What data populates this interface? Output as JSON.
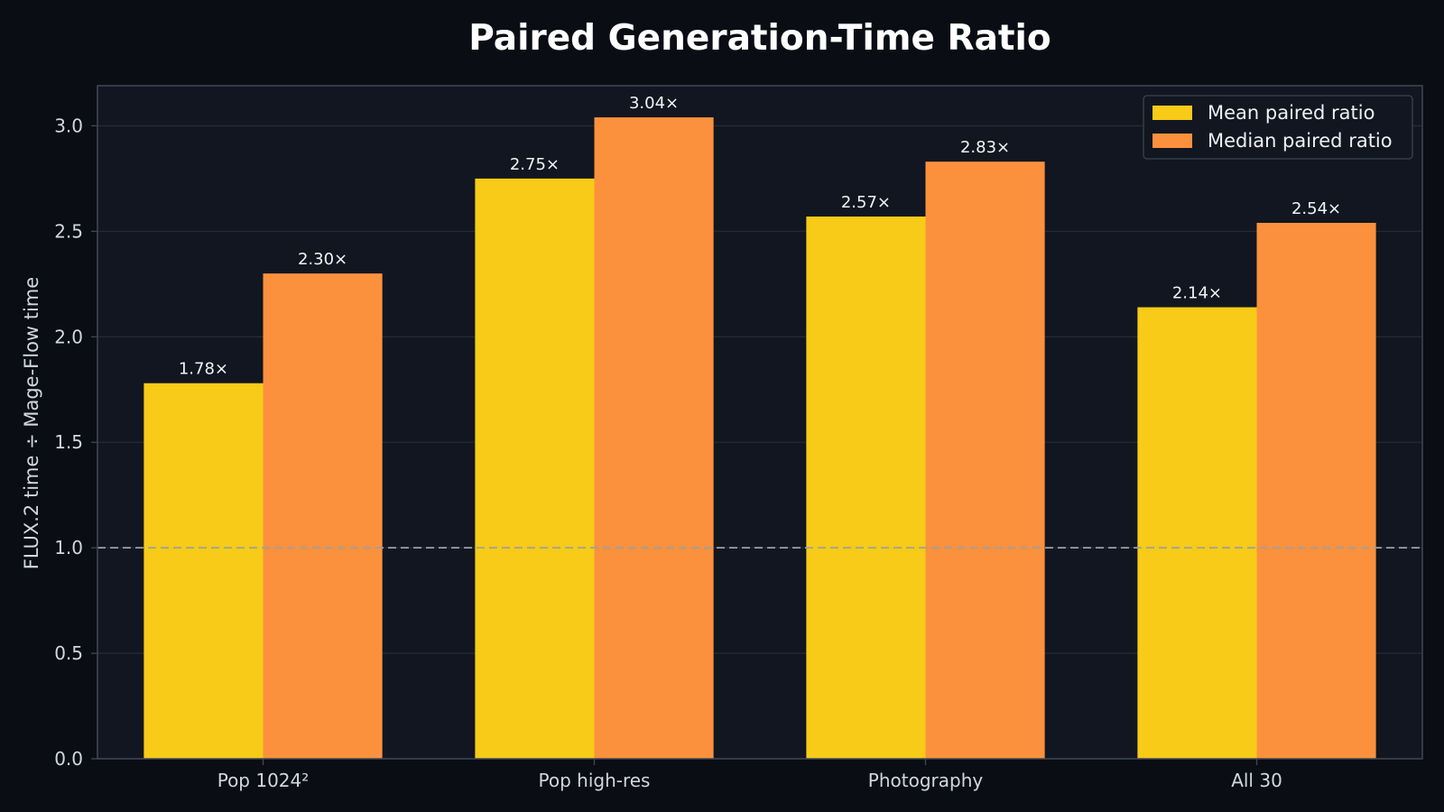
{
  "chart_data": {
    "type": "bar",
    "title": "Paired Generation-Time Ratio",
    "xlabel": "",
    "ylabel": "FLUX.2 time ÷ Mage-Flow time",
    "categories": [
      "Pop 1024²",
      "Pop high-res",
      "Photography",
      "All 30"
    ],
    "series": [
      {
        "name": "Mean paired ratio",
        "values": [
          1.78,
          2.75,
          2.57,
          2.14
        ],
        "labels": [
          "1.78×",
          "2.75×",
          "2.57×",
          "2.14×"
        ],
        "color": "#f7cb17"
      },
      {
        "name": "Median paired ratio",
        "values": [
          2.3,
          3.04,
          2.83,
          2.54
        ],
        "labels": [
          "2.30×",
          "3.04×",
          "2.83×",
          "2.54×"
        ],
        "color": "#fc913d"
      }
    ],
    "ylim": [
      0,
      3.19
    ],
    "yticks": [
      0.0,
      0.5,
      1.0,
      1.5,
      2.0,
      2.5,
      3.0
    ],
    "ytick_labels": [
      "0.0",
      "0.5",
      "1.0",
      "1.5",
      "2.0",
      "2.5",
      "3.0"
    ],
    "reference_line": {
      "y": 1.0,
      "style": "dashed"
    },
    "grid": true,
    "legend_position": "top-right",
    "colors": {
      "page_background": "#0a0d14",
      "plot_background": "#121620",
      "grid": "#232a36",
      "spine": "#3e4856",
      "reference_line": "#9aa0a8"
    }
  }
}
